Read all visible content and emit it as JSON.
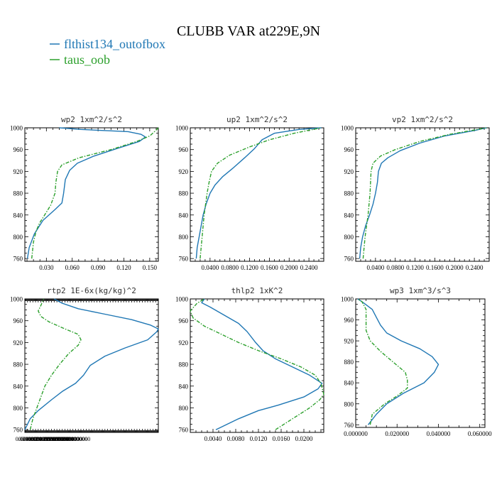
{
  "title": "CLUBB VAR at229E,9N",
  "legend": [
    {
      "name": "flthist134_outofbox",
      "color": "#1f77b4",
      "style": "solid"
    },
    {
      "name": "taus_oob",
      "color": "#2ca02c",
      "style": "dashdot"
    }
  ],
  "chart_data": [
    {
      "type": "line",
      "title": "wp2  1xm^2/s^2",
      "ylim": [
        1000,
        755
      ],
      "y_inverted": true,
      "xlim": [
        0.005,
        0.16
      ],
      "yticks": [
        "760",
        "800",
        "840",
        "880",
        "920",
        "960",
        "1000"
      ],
      "xticks": [
        "0.030",
        "0.060",
        "0.090",
        "0.120",
        "0.150"
      ],
      "series": [
        {
          "name": "flthist134_outofbox",
          "points": [
            [
              0.008,
              760
            ],
            [
              0.01,
              780
            ],
            [
              0.016,
              805
            ],
            [
              0.026,
              830
            ],
            [
              0.04,
              850
            ],
            [
              0.048,
              862
            ],
            [
              0.05,
              880
            ],
            [
              0.052,
              905
            ],
            [
              0.057,
              922
            ],
            [
              0.066,
              935
            ],
            [
              0.085,
              948
            ],
            [
              0.112,
              962
            ],
            [
              0.138,
              975
            ],
            [
              0.145,
              983
            ],
            [
              0.14,
              988
            ],
            [
              0.125,
              993
            ],
            [
              0.07,
              997
            ],
            [
              0.045,
              1000
            ]
          ]
        },
        {
          "name": "taus_oob",
          "points": [
            [
              0.013,
              760
            ],
            [
              0.015,
              790
            ],
            [
              0.018,
              810
            ],
            [
              0.022,
              825
            ],
            [
              0.028,
              840
            ],
            [
              0.035,
              858
            ],
            [
              0.04,
              880
            ],
            [
              0.041,
              900
            ],
            [
              0.043,
              920
            ],
            [
              0.048,
              932
            ],
            [
              0.068,
              945
            ],
            [
              0.105,
              960
            ],
            [
              0.135,
              975
            ],
            [
              0.15,
              985
            ],
            [
              0.157,
              995
            ],
            [
              0.16,
              1000
            ]
          ]
        }
      ]
    },
    {
      "type": "line",
      "title": "up2  1xm^2/s^2",
      "ylim": [
        1000,
        755
      ],
      "y_inverted": true,
      "xlim": [
        0.0,
        0.27
      ],
      "yticks": [
        "760",
        "800",
        "840",
        "880",
        "920",
        "960",
        "1000"
      ],
      "xticks": [
        "0.0400",
        "0.0800",
        "0.1200",
        "0.1600",
        "0.2000",
        "0.2400"
      ],
      "series": [
        {
          "name": "flthist134_outofbox",
          "points": [
            [
              0.012,
              760
            ],
            [
              0.014,
              780
            ],
            [
              0.018,
              800
            ],
            [
              0.022,
              820
            ],
            [
              0.026,
              840
            ],
            [
              0.032,
              860
            ],
            [
              0.04,
              880
            ],
            [
              0.05,
              895
            ],
            [
              0.065,
              910
            ],
            [
              0.085,
              925
            ],
            [
              0.11,
              945
            ],
            [
              0.13,
              962
            ],
            [
              0.145,
              978
            ],
            [
              0.17,
              990
            ],
            [
              0.22,
              997
            ],
            [
              0.265,
              1000
            ]
          ]
        },
        {
          "name": "taus_oob",
          "points": [
            [
              0.02,
              760
            ],
            [
              0.022,
              780
            ],
            [
              0.024,
              800
            ],
            [
              0.026,
              820
            ],
            [
              0.028,
              840
            ],
            [
              0.031,
              860
            ],
            [
              0.034,
              880
            ],
            [
              0.038,
              900
            ],
            [
              0.043,
              920
            ],
            [
              0.055,
              935
            ],
            [
              0.08,
              950
            ],
            [
              0.12,
              965
            ],
            [
              0.16,
              978
            ],
            [
              0.21,
              990
            ],
            [
              0.265,
              1000
            ]
          ]
        }
      ]
    },
    {
      "type": "line",
      "title": "vp2  1xm^2/s^2",
      "ylim": [
        1000,
        755
      ],
      "y_inverted": true,
      "xlim": [
        0.0,
        0.27
      ],
      "yticks": [
        "760",
        "800",
        "840",
        "880",
        "920",
        "960",
        "1000"
      ],
      "xticks": [
        "0.0400",
        "0.0800",
        "0.1200",
        "0.1600",
        "0.2000",
        "0.2400"
      ],
      "series": [
        {
          "name": "flthist134_outofbox",
          "points": [
            [
              0.008,
              760
            ],
            [
              0.01,
              780
            ],
            [
              0.014,
              800
            ],
            [
              0.02,
              820
            ],
            [
              0.028,
              840
            ],
            [
              0.035,
              860
            ],
            [
              0.04,
              880
            ],
            [
              0.044,
              900
            ],
            [
              0.046,
              920
            ],
            [
              0.052,
              935
            ],
            [
              0.065,
              945
            ],
            [
              0.09,
              958
            ],
            [
              0.13,
              972
            ],
            [
              0.18,
              985
            ],
            [
              0.24,
              995
            ],
            [
              0.265,
              1000
            ]
          ]
        },
        {
          "name": "taus_oob",
          "points": [
            [
              0.015,
              760
            ],
            [
              0.017,
              780
            ],
            [
              0.019,
              800
            ],
            [
              0.022,
              820
            ],
            [
              0.025,
              840
            ],
            [
              0.027,
              860
            ],
            [
              0.029,
              880
            ],
            [
              0.03,
              900
            ],
            [
              0.031,
              920
            ],
            [
              0.035,
              935
            ],
            [
              0.05,
              948
            ],
            [
              0.08,
              960
            ],
            [
              0.13,
              975
            ],
            [
              0.19,
              988
            ],
            [
              0.265,
              1000
            ]
          ]
        }
      ]
    },
    {
      "type": "line",
      "title": "rtp2  1E-6x(kg/kg)^2",
      "ylim": [
        1000,
        755
      ],
      "y_inverted": true,
      "xlim": [
        0.0,
        1.0
      ],
      "yticks": [
        "760",
        "800",
        "840",
        "880",
        "920",
        "960",
        "1000"
      ],
      "xticks": [
        "0.0200000",
        "0.0400000",
        "0.0600000",
        "0.0800000",
        "0.1000000",
        "0.1200000",
        "0.1400000",
        "0.1600000",
        "0.1800000",
        "0.2000000",
        "0.2200000",
        "0.2400000",
        "0.2600000",
        "0.2800000",
        "0.3000000",
        "0.3200000",
        "0.3400000",
        "0.3600000",
        "0.3800000",
        "0.4000000"
      ],
      "series": [
        {
          "name": "flthist134_outofbox",
          "points": [
            [
              0.0,
              760
            ],
            [
              0.04,
              780
            ],
            [
              0.1,
              795
            ],
            [
              0.2,
              815
            ],
            [
              0.28,
              830
            ],
            [
              0.38,
              845
            ],
            [
              0.44,
              860
            ],
            [
              0.49,
              878
            ],
            [
              0.6,
              895
            ],
            [
              0.75,
              910
            ],
            [
              0.92,
              925
            ],
            [
              0.99,
              940
            ],
            [
              1.0,
              945
            ],
            [
              0.94,
              952
            ],
            [
              0.8,
              962
            ],
            [
              0.6,
              972
            ],
            [
              0.4,
              982
            ],
            [
              0.28,
              992
            ],
            [
              0.22,
              1000
            ]
          ]
        },
        {
          "name": "taus_oob",
          "points": [
            [
              0.04,
              760
            ],
            [
              0.06,
              780
            ],
            [
              0.09,
              800
            ],
            [
              0.12,
              820
            ],
            [
              0.15,
              840
            ],
            [
              0.2,
              860
            ],
            [
              0.26,
              880
            ],
            [
              0.33,
              900
            ],
            [
              0.4,
              915
            ],
            [
              0.42,
              925
            ],
            [
              0.4,
              935
            ],
            [
              0.3,
              945
            ],
            [
              0.18,
              958
            ],
            [
              0.12,
              968
            ],
            [
              0.1,
              978
            ],
            [
              0.12,
              988
            ],
            [
              0.14,
              1000
            ]
          ]
        }
      ]
    },
    {
      "type": "line",
      "title": "thlp2  1xK^2",
      "ylim": [
        1000,
        755
      ],
      "y_inverted": true,
      "xlim": [
        0.0,
        0.0235
      ],
      "yticks": [
        "760",
        "800",
        "840",
        "880",
        "920",
        "960",
        "1000"
      ],
      "xticks": [
        "0.0040",
        "0.0080",
        "0.0120",
        "0.0160",
        "0.0200"
      ],
      "series": [
        {
          "name": "flthist134_outofbox",
          "points": [
            [
              0.0045,
              760
            ],
            [
              0.0085,
              780
            ],
            [
              0.012,
              795
            ],
            [
              0.0155,
              805
            ],
            [
              0.02,
              820
            ],
            [
              0.0225,
              835
            ],
            [
              0.0232,
              845
            ],
            [
              0.021,
              860
            ],
            [
              0.018,
              875
            ],
            [
              0.015,
              890
            ],
            [
              0.0128,
              905
            ],
            [
              0.0115,
              920
            ],
            [
              0.01,
              940
            ],
            [
              0.0085,
              955
            ],
            [
              0.006,
              970
            ],
            [
              0.0035,
              985
            ],
            [
              0.002,
              993
            ],
            [
              0.0025,
              1000
            ]
          ]
        },
        {
          "name": "taus_oob",
          "points": [
            [
              0.015,
              760
            ],
            [
              0.018,
              780
            ],
            [
              0.021,
              800
            ],
            [
              0.0228,
              815
            ],
            [
              0.0235,
              825
            ],
            [
              0.023,
              845
            ],
            [
              0.022,
              860
            ],
            [
              0.0195,
              875
            ],
            [
              0.016,
              890
            ],
            [
              0.012,
              905
            ],
            [
              0.0085,
              920
            ],
            [
              0.0055,
              935
            ],
            [
              0.0025,
              950
            ],
            [
              0.0005,
              965
            ],
            [
              0.0,
              978
            ],
            [
              0.0012,
              992
            ],
            [
              0.0025,
              1000
            ]
          ]
        }
      ]
    },
    {
      "type": "line",
      "title": "wp3  1xm^3/s^3",
      "ylim": [
        1000,
        755
      ],
      "y_inverted": true,
      "xlim": [
        0.0,
        0.0625
      ],
      "yticks": [
        "760",
        "800",
        "840",
        "880",
        "920",
        "960",
        "1000"
      ],
      "xticks": [
        "0.000000",
        "0.020000",
        "0.040000",
        "0.060000"
      ],
      "series": [
        {
          "name": "flthist134_outofbox",
          "points": [
            [
              0.006,
              760
            ],
            [
              0.01,
              780
            ],
            [
              0.015,
              800
            ],
            [
              0.023,
              820
            ],
            [
              0.033,
              840
            ],
            [
              0.038,
              860
            ],
            [
              0.04,
              875
            ],
            [
              0.037,
              890
            ],
            [
              0.031,
              905
            ],
            [
              0.022,
              920
            ],
            [
              0.015,
              935
            ],
            [
              0.012,
              950
            ],
            [
              0.01,
              965
            ],
            [
              0.008,
              980
            ],
            [
              0.004,
              992
            ],
            [
              0.001,
              1000
            ]
          ]
        },
        {
          "name": "taus_oob",
          "points": [
            [
              0.007,
              760
            ],
            [
              0.008,
              780
            ],
            [
              0.014,
              800
            ],
            [
              0.02,
              815
            ],
            [
              0.025,
              830
            ],
            [
              0.025,
              845
            ],
            [
              0.024,
              860
            ],
            [
              0.018,
              880
            ],
            [
              0.012,
              900
            ],
            [
              0.007,
              920
            ],
            [
              0.005,
              940
            ],
            [
              0.005,
              960
            ],
            [
              0.005,
              980
            ],
            [
              0.003,
              995
            ],
            [
              0.001,
              1000
            ]
          ]
        }
      ]
    }
  ]
}
